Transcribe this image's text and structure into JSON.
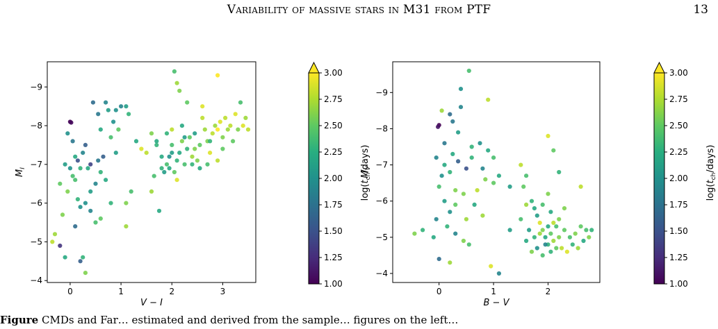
{
  "header": {
    "running_title": "Variability of massive stars in M31 from PTF",
    "page_number": "13"
  },
  "caption": {
    "label": "Figure",
    "text": "CMDs and Far… estimated and derived from the sample… figures on the left…"
  },
  "chart_data": [
    {
      "type": "scatter",
      "title": "",
      "xlabel": "V − I",
      "ylabel": "M_I",
      "xlim": [
        -0.45,
        3.65
      ],
      "ylim": [
        -3.95,
        -9.65
      ],
      "y_inverted": true,
      "xticks": [
        "0",
        "1",
        "2",
        "3"
      ],
      "yticks": [
        "−4",
        "−5",
        "−6",
        "−7",
        "−8",
        "−9"
      ],
      "grid": false,
      "colorbar": {
        "label": "log(t_ch/days)",
        "min": 1.0,
        "max": 3.0,
        "ticks": [
          "1.00",
          "1.25",
          "1.50",
          "1.75",
          "2.00",
          "2.25",
          "2.50",
          "2.75",
          "3.00"
        ],
        "colormap": "viridis",
        "extend": "max"
      },
      "points": [
        [
          0.0,
          -8.1,
          1.0
        ],
        [
          0.02,
          -8.08,
          1.05
        ],
        [
          -0.05,
          -7.8,
          2.0
        ],
        [
          0.05,
          -7.6,
          1.8
        ],
        [
          -0.1,
          -7.0,
          2.1
        ],
        [
          0.1,
          -7.2,
          2.2
        ],
        [
          0.2,
          -6.9,
          2.3
        ],
        [
          0.05,
          -6.7,
          2.4
        ],
        [
          -0.2,
          -6.5,
          2.5
        ],
        [
          -0.05,
          -6.3,
          2.6
        ],
        [
          0.15,
          -6.1,
          2.3
        ],
        [
          0.3,
          -6.0,
          2.0
        ],
        [
          0.4,
          -5.8,
          1.9
        ],
        [
          0.5,
          -5.5,
          2.4
        ],
        [
          0.1,
          -5.4,
          1.7
        ],
        [
          -0.15,
          -5.7,
          2.6
        ],
        [
          -0.3,
          -5.2,
          2.7
        ],
        [
          -0.35,
          -5.0,
          2.8
        ],
        [
          -0.2,
          -4.9,
          1.3
        ],
        [
          -0.1,
          -4.6,
          2.2
        ],
        [
          0.2,
          -4.5,
          1.6
        ],
        [
          0.3,
          -4.2,
          2.6
        ],
        [
          0.25,
          -4.6,
          2.3
        ],
        [
          0.6,
          -5.6,
          2.5
        ],
        [
          0.8,
          -6.0,
          2.3
        ],
        [
          1.1,
          -6.0,
          2.6
        ],
        [
          1.1,
          -5.4,
          2.7
        ],
        [
          1.2,
          -6.3,
          2.4
        ],
        [
          0.3,
          -7.5,
          1.6
        ],
        [
          0.4,
          -7.0,
          1.4
        ],
        [
          0.45,
          -8.6,
          1.7
        ],
        [
          0.55,
          -8.3,
          1.8
        ],
        [
          0.7,
          -8.6,
          1.9
        ],
        [
          0.75,
          -8.4,
          2.1
        ],
        [
          0.9,
          -8.4,
          2.0
        ],
        [
          1.0,
          -8.5,
          1.9
        ],
        [
          1.1,
          -8.5,
          2.1
        ],
        [
          1.15,
          -8.3,
          2.3
        ],
        [
          0.6,
          -7.9,
          2.2
        ],
        [
          0.8,
          -7.7,
          2.4
        ],
        [
          0.9,
          -7.3,
          2.1
        ],
        [
          0.95,
          -7.9,
          2.5
        ],
        [
          0.85,
          -8.1,
          2.0
        ],
        [
          0.65,
          -7.2,
          1.6
        ],
        [
          0.55,
          -7.1,
          1.8
        ],
        [
          0.35,
          -6.9,
          2.2
        ],
        [
          0.25,
          -7.3,
          1.9
        ],
        [
          0.15,
          -7.1,
          1.5
        ],
        [
          0.0,
          -6.9,
          2.0
        ],
        [
          0.5,
          -6.5,
          1.9
        ],
        [
          0.6,
          -6.8,
          2.3
        ],
        [
          0.7,
          -6.6,
          2.2
        ],
        [
          0.4,
          -6.3,
          2.1
        ],
        [
          0.2,
          -5.9,
          2.0
        ],
        [
          0.1,
          -6.6,
          2.4
        ],
        [
          1.3,
          -7.6,
          2.2
        ],
        [
          1.5,
          -7.3,
          2.8
        ],
        [
          1.6,
          -7.8,
          2.6
        ],
        [
          1.7,
          -7.5,
          2.3
        ],
        [
          1.8,
          -7.2,
          2.2
        ],
        [
          1.9,
          -7.0,
          2.4
        ],
        [
          2.0,
          -7.3,
          2.1
        ],
        [
          2.05,
          -9.4,
          2.4
        ],
        [
          2.1,
          -9.1,
          2.7
        ],
        [
          2.15,
          -8.9,
          2.6
        ],
        [
          2.3,
          -8.6,
          2.5
        ],
        [
          1.65,
          -6.7,
          2.4
        ],
        [
          1.8,
          -6.9,
          2.3
        ],
        [
          1.75,
          -5.8,
          2.2
        ],
        [
          1.85,
          -6.8,
          2.1
        ],
        [
          1.95,
          -6.9,
          2.2
        ],
        [
          2.0,
          -7.5,
          2.4
        ],
        [
          2.05,
          -6.8,
          2.5
        ],
        [
          2.1,
          -7.1,
          2.3
        ],
        [
          2.15,
          -7.3,
          2.2
        ],
        [
          2.2,
          -7.6,
          2.6
        ],
        [
          2.25,
          -7.0,
          2.4
        ],
        [
          2.3,
          -7.4,
          2.3
        ],
        [
          2.35,
          -7.7,
          2.5
        ],
        [
          2.4,
          -7.2,
          2.7
        ],
        [
          2.45,
          -7.8,
          2.1
        ],
        [
          2.5,
          -7.1,
          2.6
        ],
        [
          2.55,
          -7.5,
          2.5
        ],
        [
          2.6,
          -8.2,
          2.8
        ],
        [
          2.65,
          -7.9,
          2.7
        ],
        [
          2.7,
          -7.6,
          2.6
        ],
        [
          2.75,
          -7.3,
          2.9
        ],
        [
          2.8,
          -7.8,
          2.8
        ],
        [
          2.85,
          -8.0,
          2.7
        ],
        [
          2.9,
          -7.9,
          3.0
        ],
        [
          2.95,
          -8.1,
          2.9
        ],
        [
          3.0,
          -7.7,
          2.6
        ],
        [
          3.05,
          -8.2,
          2.8
        ],
        [
          3.1,
          -7.9,
          2.7
        ],
        [
          3.15,
          -8.0,
          2.8
        ],
        [
          3.2,
          -7.6,
          2.5
        ],
        [
          3.25,
          -8.3,
          2.9
        ],
        [
          3.3,
          -7.9,
          2.6
        ],
        [
          3.35,
          -8.6,
          2.4
        ],
        [
          3.4,
          -8.0,
          2.9
        ],
        [
          3.45,
          -8.2,
          2.7
        ],
        [
          3.5,
          -7.9,
          2.8
        ],
        [
          2.9,
          -9.3,
          3.0
        ],
        [
          2.6,
          -8.5,
          2.9
        ],
        [
          2.2,
          -8.0,
          2.2
        ],
        [
          2.0,
          -7.9,
          2.8
        ],
        [
          1.9,
          -7.8,
          2.3
        ],
        [
          2.1,
          -6.6,
          2.9
        ],
        [
          2.4,
          -7.0,
          2.3
        ],
        [
          2.7,
          -7.0,
          2.4
        ],
        [
          2.9,
          -7.1,
          2.8
        ],
        [
          1.95,
          -7.2,
          2.0
        ],
        [
          2.25,
          -7.7,
          2.1
        ],
        [
          2.45,
          -7.4,
          2.6
        ],
        [
          2.55,
          -6.9,
          2.2
        ],
        [
          2.75,
          -7.6,
          2.3
        ],
        [
          3.0,
          -7.4,
          2.5
        ],
        [
          1.6,
          -6.3,
          2.7
        ],
        [
          1.7,
          -7.6,
          2.2
        ],
        [
          1.4,
          -7.4,
          2.9
        ]
      ]
    },
    {
      "type": "scatter",
      "title": "",
      "xlabel": "B − V",
      "ylabel": "M_V",
      "xlim": [
        -0.85,
        2.95
      ],
      "ylim": [
        -3.75,
        -9.85
      ],
      "y_inverted": true,
      "xticks": [
        "0",
        "1",
        "2"
      ],
      "yticks": [
        "−4",
        "−5",
        "−6",
        "−7",
        "−8",
        "−9"
      ],
      "grid": false,
      "colorbar": {
        "label": "log(t_ch/days)",
        "min": 1.0,
        "max": 3.0,
        "ticks": [
          "1.00",
          "1.25",
          "1.50",
          "1.75",
          "2.00",
          "2.25",
          "2.50",
          "2.75",
          "3.00"
        ],
        "colormap": "viridis",
        "extend": "max"
      },
      "points": [
        [
          0.55,
          -9.6,
          2.4
        ],
        [
          0.4,
          -9.1,
          2.0
        ],
        [
          0.4,
          -8.6,
          1.9
        ],
        [
          0.2,
          -8.4,
          1.7
        ],
        [
          0.05,
          -8.5,
          2.7
        ],
        [
          0.0,
          -8.1,
          1.0
        ],
        [
          -0.02,
          -8.05,
          1.1
        ],
        [
          0.25,
          -8.2,
          1.8
        ],
        [
          0.35,
          -7.9,
          2.1
        ],
        [
          0.6,
          -7.5,
          2.3
        ],
        [
          0.75,
          -7.6,
          2.0
        ],
        [
          0.9,
          -7.4,
          2.2
        ],
        [
          1.0,
          -7.2,
          2.4
        ],
        [
          0.1,
          -7.6,
          1.8
        ],
        [
          -0.05,
          -7.2,
          1.9
        ],
        [
          0.1,
          -7.0,
          2.2
        ],
        [
          0.2,
          -6.8,
          2.3
        ],
        [
          0.35,
          -7.1,
          1.6
        ],
        [
          0.5,
          -6.9,
          1.5
        ],
        [
          0.8,
          -6.9,
          1.9
        ],
        [
          0.85,
          -6.6,
          2.6
        ],
        [
          0.7,
          -6.3,
          2.8
        ],
        [
          1.1,
          -6.7,
          2.2
        ],
        [
          1.3,
          -6.4,
          2.1
        ],
        [
          0.9,
          -8.8,
          2.8
        ],
        [
          0.0,
          -6.4,
          2.4
        ],
        [
          0.1,
          -6.0,
          2.1
        ],
        [
          0.2,
          -5.7,
          2.0
        ],
        [
          0.3,
          -5.9,
          2.5
        ],
        [
          0.45,
          -6.2,
          2.6
        ],
        [
          0.15,
          -5.3,
          2.3
        ],
        [
          -0.05,
          -5.5,
          1.9
        ],
        [
          0.3,
          -5.1,
          1.9
        ],
        [
          0.45,
          -4.9,
          2.6
        ],
        [
          0.2,
          -4.3,
          2.7
        ],
        [
          0.0,
          -4.4,
          1.7
        ],
        [
          -0.1,
          -5.0,
          2.2
        ],
        [
          -0.3,
          -5.2,
          2.3
        ],
        [
          -0.45,
          -5.1,
          2.6
        ],
        [
          0.55,
          -4.8,
          2.4
        ],
        [
          0.8,
          -5.6,
          2.7
        ],
        [
          0.95,
          -4.2,
          2.9
        ],
        [
          1.1,
          -4.0,
          1.9
        ],
        [
          1.5,
          -7.0,
          2.8
        ],
        [
          1.55,
          -6.4,
          2.5
        ],
        [
          1.6,
          -6.7,
          2.4
        ],
        [
          1.7,
          -6.0,
          2.3
        ],
        [
          1.75,
          -5.8,
          2.2
        ],
        [
          1.8,
          -5.6,
          2.1
        ],
        [
          1.85,
          -5.4,
          2.9
        ],
        [
          1.9,
          -5.2,
          2.6
        ],
        [
          1.95,
          -5.0,
          2.2
        ],
        [
          2.0,
          -4.8,
          2.3
        ],
        [
          2.05,
          -5.1,
          2.5
        ],
        [
          2.1,
          -4.9,
          2.7
        ],
        [
          2.15,
          -5.3,
          2.4
        ],
        [
          2.2,
          -5.0,
          2.6
        ],
        [
          2.25,
          -4.7,
          2.8
        ],
        [
          2.3,
          -5.2,
          2.5
        ],
        [
          2.35,
          -4.6,
          2.9
        ],
        [
          2.4,
          -5.0,
          2.4
        ],
        [
          2.45,
          -4.8,
          2.3
        ],
        [
          2.5,
          -5.1,
          2.6
        ],
        [
          2.55,
          -4.7,
          2.7
        ],
        [
          2.6,
          -5.3,
          2.5
        ],
        [
          2.65,
          -4.9,
          2.2
        ],
        [
          2.7,
          -5.2,
          2.4
        ],
        [
          2.75,
          -5.0,
          2.6
        ],
        [
          2.8,
          -5.2,
          2.3
        ],
        [
          1.6,
          -4.9,
          2.2
        ],
        [
          1.65,
          -5.2,
          2.1
        ],
        [
          1.7,
          -4.6,
          2.6
        ],
        [
          1.75,
          -5.0,
          2.3
        ],
        [
          1.8,
          -4.7,
          2.0
        ],
        [
          1.85,
          -5.1,
          2.7
        ],
        [
          1.9,
          -4.5,
          2.4
        ],
        [
          1.95,
          -4.8,
          1.9
        ],
        [
          2.0,
          -5.3,
          2.2
        ],
        [
          2.05,
          -4.6,
          2.3
        ],
        [
          2.1,
          -5.4,
          2.8
        ],
        [
          2.15,
          -4.7,
          2.5
        ],
        [
          2.2,
          -5.5,
          2.6
        ],
        [
          2.0,
          -7.8,
          2.9
        ],
        [
          2.1,
          -7.4,
          2.5
        ],
        [
          2.2,
          -6.8,
          2.3
        ],
        [
          2.6,
          -6.4,
          2.8
        ],
        [
          1.3,
          -5.2,
          2.1
        ],
        [
          1.5,
          -5.5,
          2.4
        ],
        [
          1.6,
          -5.9,
          2.7
        ],
        [
          2.0,
          -6.2,
          2.6
        ],
        [
          2.3,
          -5.8,
          2.6
        ],
        [
          1.9,
          -5.9,
          2.4
        ],
        [
          2.05,
          -5.7,
          2.2
        ],
        [
          0.25,
          -7.3,
          2.2
        ],
        [
          0.05,
          -6.7,
          2.0
        ],
        [
          0.6,
          -7.2,
          2.3
        ],
        [
          1.0,
          -6.5,
          2.5
        ],
        [
          0.3,
          -6.3,
          2.6
        ],
        [
          0.5,
          -5.5,
          2.7
        ],
        [
          0.65,
          -5.9,
          2.2
        ]
      ]
    }
  ]
}
